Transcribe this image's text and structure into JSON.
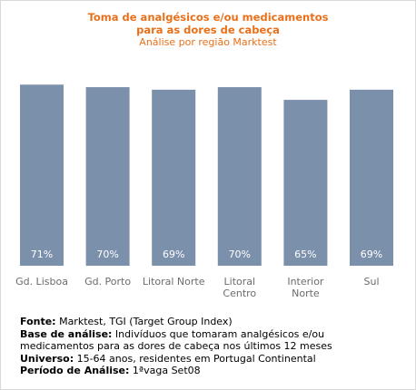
{
  "chart_data": {
    "type": "bar",
    "title_lines": [
      "Toma de analgésicos e/ou medicamentos",
      "para as dores de cabeça"
    ],
    "subtitle": "Análise por região Marktest",
    "categories": [
      [
        "Gd. Lisboa"
      ],
      [
        "Gd. Porto"
      ],
      [
        "Litoral Norte"
      ],
      [
        "Litoral",
        "Centro"
      ],
      [
        "Interior",
        "Norte"
      ],
      [
        "Sul"
      ]
    ],
    "values": [
      71,
      70,
      69,
      70,
      65,
      69
    ],
    "value_labels": [
      "71%",
      "70%",
      "69%",
      "70%",
      "65%",
      "69%"
    ],
    "ylim": [
      0,
      75
    ],
    "bar_color": "#7b90ab",
    "title_color": "#e8701a",
    "grid": false,
    "legend": "none"
  },
  "footer": {
    "fonte_label": "Fonte:",
    "fonte_value": " Marktest, TGI (Target Group Index)",
    "base_label": "Base de análise:",
    "base_value_1": " Indivíduos que tomaram analgésicos e/ou",
    "base_value_2": "medicamentos para as dores de cabeça nos últimos 12 meses",
    "universo_label": "Universo:",
    "universo_value": " 15-64 anos, residentes em Portugal Continental",
    "periodo_label": "Período de Análise:",
    "periodo_value": " 1ªvaga Set08"
  }
}
